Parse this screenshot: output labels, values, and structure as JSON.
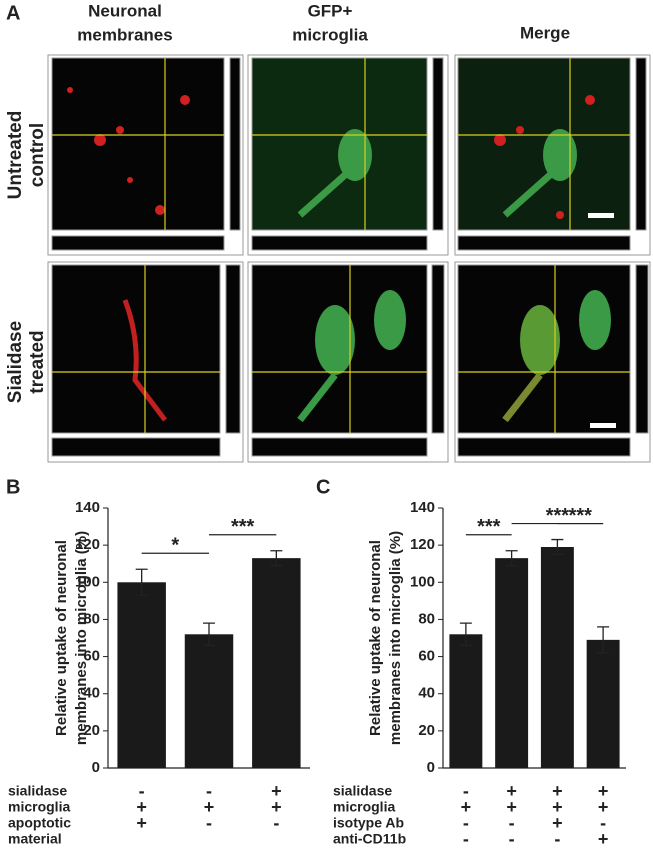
{
  "panel_a": {
    "letter": "A",
    "columns": [
      [
        "Neuronal",
        "membranes"
      ],
      [
        "GFP+",
        "microglia"
      ],
      [
        "Merge"
      ]
    ],
    "rows": [
      [
        "Untreated",
        "control"
      ],
      [
        "Sialidase",
        "treated"
      ]
    ]
  },
  "chart_data": [
    {
      "type": "bar",
      "letter": "B",
      "ylabel": [
        "Relative uptake of neuronal",
        "membranes into microglia (%)"
      ],
      "values": [
        100,
        72,
        113
      ],
      "errors": [
        7,
        6,
        4
      ],
      "color": "#1a1a1a",
      "ylim": [
        0,
        140
      ],
      "yticks": [
        0,
        20,
        40,
        60,
        80,
        100,
        120,
        140
      ],
      "significance": [
        {
          "pair": [
            0,
            1
          ],
          "label": "*"
        },
        {
          "pair": [
            1,
            2
          ],
          "label": "***"
        }
      ],
      "conditions": [
        {
          "label": [
            "sialidase"
          ],
          "signs": [
            "-",
            "-",
            "+"
          ]
        },
        {
          "label": [
            "microglia"
          ],
          "signs": [
            "+",
            "+",
            "+"
          ]
        },
        {
          "label": [
            "apoptotic",
            "material"
          ],
          "signs": [
            "+",
            "-",
            "-"
          ]
        }
      ]
    },
    {
      "type": "bar",
      "letter": "C",
      "ylabel": [
        "Relative uptake of neuronal",
        "membranes into microglia (%)"
      ],
      "values": [
        72,
        113,
        119,
        69
      ],
      "errors": [
        6,
        4,
        4,
        7
      ],
      "color": "#1a1a1a",
      "ylim": [
        0,
        140
      ],
      "yticks": [
        0,
        20,
        40,
        60,
        80,
        100,
        120,
        140
      ],
      "significance": [
        {
          "pair": [
            0,
            1
          ],
          "label": "***"
        },
        {
          "pair": [
            1,
            3
          ],
          "label": "***"
        },
        {
          "pair": [
            2,
            3
          ],
          "label": "***"
        }
      ],
      "conditions": [
        {
          "label": [
            "sialidase"
          ],
          "signs": [
            "-",
            "+",
            "+",
            "+"
          ]
        },
        {
          "label": [
            "microglia"
          ],
          "signs": [
            "+",
            "+",
            "+",
            "+"
          ]
        },
        {
          "label": [
            "isotype Ab"
          ],
          "signs": [
            "-",
            "-",
            "+",
            "-"
          ]
        },
        {
          "label": [
            "anti-CD11b"
          ],
          "signs": [
            "-",
            "-",
            "-",
            "+"
          ]
        }
      ]
    }
  ]
}
